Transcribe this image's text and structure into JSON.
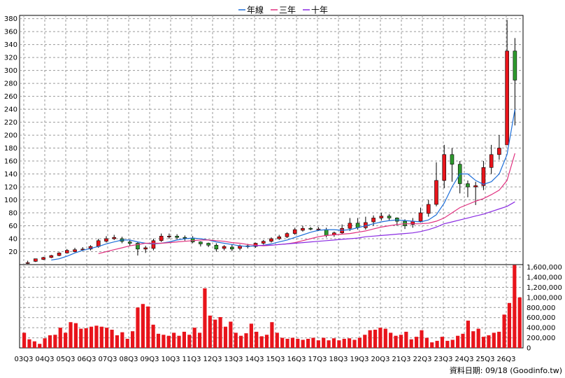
{
  "chart_data": [
    {
      "type": "candlestick",
      "title": "",
      "legend": {
        "placement": "top-center",
        "entries": [
          {
            "name": "年線",
            "color": "#1e6fd9"
          },
          {
            "name": "三年",
            "color": "#e0307f"
          },
          {
            "name": "十年",
            "color": "#8a2be2"
          }
        ]
      },
      "yticks": [
        20,
        40,
        60,
        80,
        100,
        120,
        140,
        160,
        180,
        200,
        220,
        240,
        260,
        280,
        300,
        320,
        340,
        360,
        380
      ],
      "ylim": [
        0,
        385
      ],
      "grid": true,
      "up_color": "#e8141b",
      "down_color": "#2e9a2e",
      "candles": [
        [
          2,
          4,
          3,
          6,
          1
        ],
        [
          5,
          4,
          9,
          9,
          4
        ],
        [
          8,
          8,
          11,
          12,
          7
        ],
        [
          11,
          11,
          14,
          15,
          10
        ],
        [
          14,
          14,
          18,
          19,
          13
        ],
        [
          18,
          18,
          22,
          24,
          17
        ],
        [
          20,
          21,
          23,
          26,
          19
        ],
        [
          23,
          22,
          24,
          27,
          21
        ],
        [
          24,
          24,
          28,
          30,
          22
        ],
        [
          28,
          28,
          37,
          40,
          26
        ],
        [
          36,
          36,
          40,
          44,
          34
        ],
        [
          40,
          41,
          42,
          46,
          38
        ],
        [
          40,
          40,
          36,
          43,
          33
        ],
        [
          35,
          34,
          33,
          38,
          29
        ],
        [
          33,
          32,
          24,
          35,
          14
        ],
        [
          24,
          24,
          26,
          29,
          18
        ],
        [
          25,
          28,
          37,
          40,
          22
        ],
        [
          37,
          38,
          44,
          48,
          35
        ],
        [
          44,
          44,
          44,
          48,
          40
        ],
        [
          44,
          44,
          42,
          47,
          39
        ],
        [
          42,
          42,
          41,
          45,
          37
        ],
        [
          41,
          40,
          35,
          44,
          33
        ],
        [
          35,
          34,
          32,
          36,
          28
        ],
        [
          33,
          32,
          30,
          34,
          27
        ],
        [
          30,
          29,
          24,
          33,
          20
        ],
        [
          25,
          25,
          28,
          30,
          22
        ],
        [
          27,
          27,
          24,
          31,
          21
        ],
        [
          25,
          25,
          29,
          31,
          22
        ],
        [
          29,
          29,
          28,
          32,
          25
        ],
        [
          28,
          28,
          33,
          34,
          26
        ],
        [
          33,
          32,
          36,
          38,
          31
        ],
        [
          36,
          36,
          40,
          42,
          34
        ],
        [
          40,
          40,
          43,
          46,
          38
        ],
        [
          43,
          43,
          48,
          50,
          41
        ],
        [
          48,
          48,
          54,
          57,
          46
        ],
        [
          53,
          54,
          56,
          60,
          51
        ],
        [
          56,
          56,
          55,
          58,
          53
        ],
        [
          55,
          56,
          55,
          58,
          52
        ],
        [
          54,
          53,
          45,
          57,
          42
        ],
        [
          46,
          45,
          49,
          51,
          43
        ],
        [
          49,
          50,
          56,
          62,
          47
        ],
        [
          56,
          58,
          64,
          72,
          52
        ],
        [
          64,
          64,
          57,
          72,
          54
        ],
        [
          57,
          58,
          65,
          74,
          54
        ],
        [
          66,
          66,
          72,
          76,
          60
        ],
        [
          72,
          72,
          75,
          80,
          68
        ],
        [
          75,
          75,
          72,
          78,
          68
        ],
        [
          72,
          70,
          67,
          73,
          60
        ],
        [
          67,
          66,
          60,
          70,
          55
        ],
        [
          62,
          61,
          67,
          72,
          57
        ],
        [
          67,
          67,
          80,
          88,
          65
        ],
        [
          79,
          80,
          93,
          100,
          74
        ],
        [
          93,
          95,
          130,
          158,
          90
        ],
        [
          130,
          125,
          170,
          185,
          118
        ],
        [
          170,
          172,
          155,
          180,
          128
        ],
        [
          155,
          150,
          125,
          160,
          110
        ],
        [
          125,
          123,
          120,
          130,
          104
        ],
        [
          120,
          118,
          122,
          128,
          92
        ],
        [
          122,
          125,
          150,
          160,
          115
        ],
        [
          150,
          150,
          170,
          185,
          140
        ],
        [
          170,
          170,
          180,
          200,
          162
        ],
        [
          185,
          190,
          330,
          378,
          185
        ],
        [
          330,
          335,
          285,
          350,
          215
        ]
      ],
      "ma": {
        "年線": [
          null,
          null,
          null,
          7,
          9,
          13,
          18,
          22,
          25,
          28,
          32,
          35,
          38,
          38,
          35,
          33,
          32,
          33,
          35,
          38,
          40,
          41,
          40,
          38,
          35,
          33,
          31,
          29,
          28,
          29,
          30,
          32,
          35,
          38,
          42,
          46,
          50,
          53,
          54,
          54,
          53,
          54,
          57,
          60,
          63,
          66,
          68,
          69,
          68,
          67,
          66,
          69,
          77,
          95,
          120,
          140,
          140,
          130,
          124,
          128,
          140,
          170,
          240
        ],
        "三年": [
          null,
          null,
          null,
          null,
          null,
          null,
          null,
          null,
          null,
          17,
          20,
          23,
          26,
          29,
          31,
          33,
          33,
          33,
          34,
          35,
          36,
          37,
          38,
          38,
          37,
          36,
          34,
          33,
          31,
          30,
          29,
          30,
          31,
          32,
          34,
          37,
          40,
          43,
          45,
          46,
          47,
          48,
          50,
          52,
          55,
          58,
          60,
          62,
          63,
          63,
          63,
          64,
          67,
          72,
          80,
          88,
          93,
          98,
          102,
          108,
          115,
          130,
          172
        ],
        "十年": [
          null,
          null,
          null,
          null,
          null,
          null,
          null,
          null,
          null,
          null,
          null,
          null,
          null,
          null,
          null,
          null,
          null,
          null,
          null,
          null,
          null,
          null,
          null,
          null,
          null,
          null,
          null,
          null,
          null,
          29,
          30,
          30,
          31,
          32,
          33,
          34,
          35,
          36,
          37,
          38,
          39,
          40,
          41,
          43,
          44,
          45,
          46,
          47,
          48,
          49,
          51,
          54,
          58,
          63,
          66,
          69,
          72,
          75,
          78,
          82,
          86,
          90,
          97
        ]
      }
    },
    {
      "type": "bar",
      "title": "",
      "xticks": [
        "03Q3",
        "04Q3",
        "05Q3",
        "06Q3",
        "07Q3",
        "08Q3",
        "09Q3",
        "10Q3",
        "11Q3",
        "12Q3",
        "13Q3",
        "14Q3",
        "15Q3",
        "16Q3",
        "17Q3",
        "18Q3",
        "19Q3",
        "20Q3",
        "21Q3",
        "22Q3",
        "23Q3",
        "24Q3",
        "25Q3",
        "26Q3"
      ],
      "yticks": [
        "0",
        "200,000",
        "400,000",
        "600,000",
        "800,000",
        "1,000,000",
        "1,200,000",
        "1,400,000",
        "1,600,000"
      ],
      "ylim": [
        0,
        1650000
      ],
      "bar_color": "#e8141b",
      "values": [
        300000,
        170000,
        130000,
        80000,
        190000,
        250000,
        260000,
        400000,
        300000,
        510000,
        490000,
        380000,
        390000,
        420000,
        440000,
        420000,
        400000,
        360000,
        250000,
        310000,
        180000,
        330000,
        800000,
        870000,
        820000,
        460000,
        280000,
        260000,
        240000,
        300000,
        240000,
        320000,
        260000,
        400000,
        300000,
        1180000,
        640000,
        560000,
        610000,
        420000,
        520000,
        300000,
        240000,
        290000,
        480000,
        320000,
        230000,
        260000,
        510000,
        300000,
        200000,
        180000,
        200000,
        180000,
        160000,
        180000,
        200000,
        150000,
        200000,
        150000,
        190000,
        150000,
        180000,
        190000,
        160000,
        200000,
        260000,
        350000,
        360000,
        400000,
        380000,
        300000,
        240000,
        260000,
        320000,
        170000,
        220000,
        350000,
        200000,
        110000,
        140000,
        220000,
        140000,
        160000,
        240000,
        280000,
        540000,
        330000,
        380000,
        220000,
        250000,
        300000,
        320000,
        660000,
        890000,
        1640000,
        1000000
      ]
    }
  ],
  "footer": {
    "source_label": "資料日期: 09/18 (Goodinfo.tw)"
  }
}
